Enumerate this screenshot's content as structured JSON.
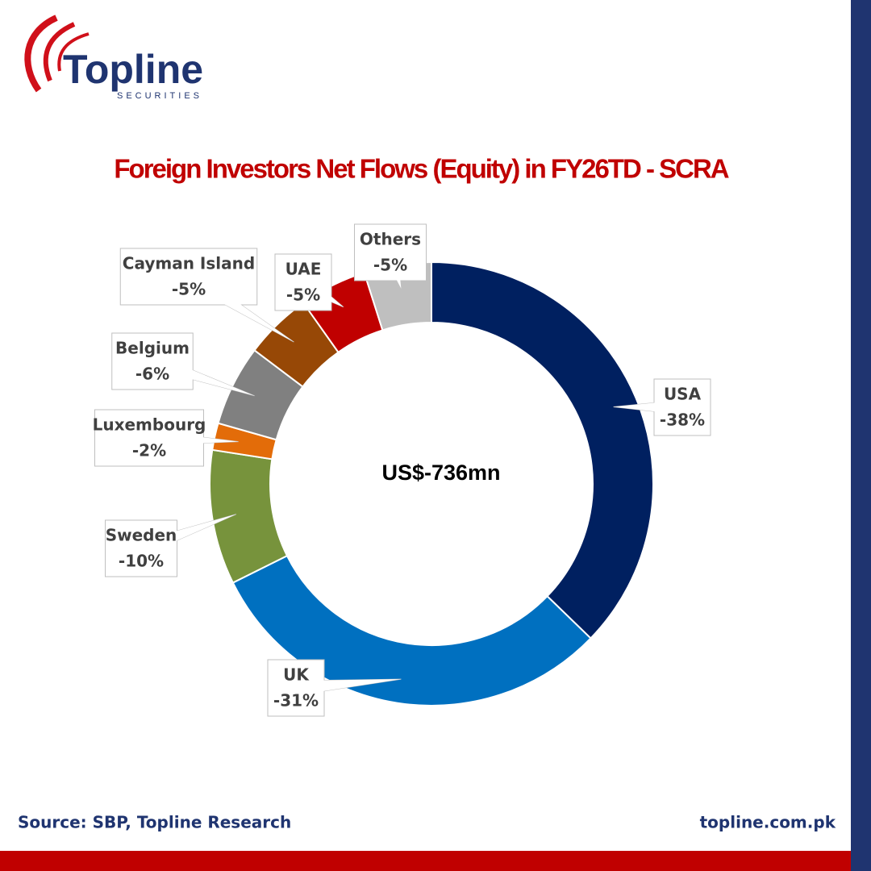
{
  "logo": {
    "name": "Topline",
    "subtitle": "SECURITIES"
  },
  "chart_data": {
    "type": "donut",
    "title": "Foreign Investors Net Flows (Equity)  in FY26TD - SCRA",
    "center_label": "US$-736mn",
    "categories": [
      "USA",
      "UK",
      "Sweden",
      "Luxembourg",
      "Belgium",
      "Cayman Island",
      "UAE",
      "Others"
    ],
    "values": [
      -38,
      -31,
      -10,
      -2,
      -6,
      -5,
      -5,
      -5
    ],
    "value_labels": [
      "-38%",
      "-31%",
      "-10%",
      "-2%",
      "-6%",
      "-5%",
      "-5%",
      "-5%"
    ],
    "colors": [
      "#002060",
      "#0070c0",
      "#77933c",
      "#e36c09",
      "#808080",
      "#974806",
      "#c00000",
      "#bfbfbf"
    ]
  },
  "footer": {
    "source": "Source: SBP, Topline Research",
    "website": "topline.com.pk"
  }
}
